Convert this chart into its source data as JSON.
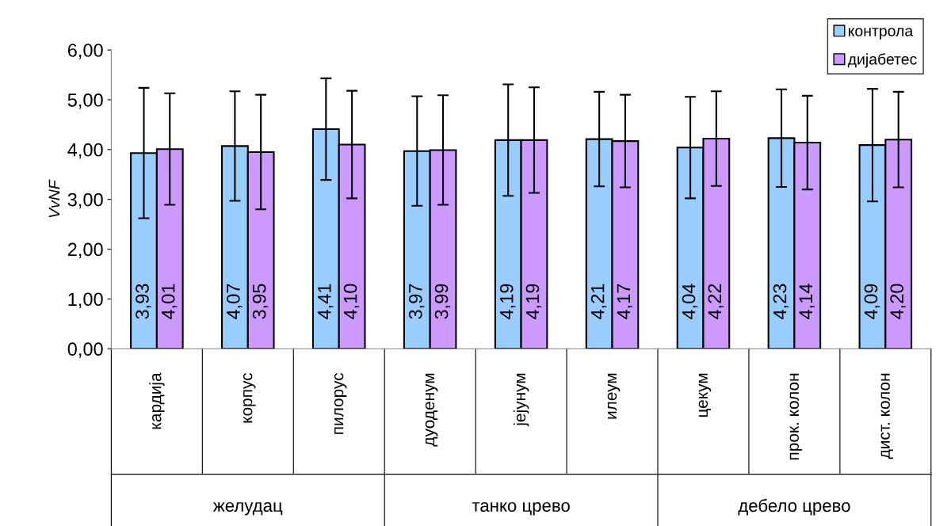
{
  "chart_data": {
    "type": "bar",
    "ylabel": "VvNF",
    "categories": [
      "кардија",
      "корпус",
      "пилорус",
      "дуоденум",
      "јејунум",
      "илеум",
      "цекум",
      "прок. колон",
      "дист. колон"
    ],
    "series": [
      {
        "name": "контрола",
        "color": "#99ccff",
        "values": [
          3.93,
          4.07,
          4.41,
          3.97,
          4.19,
          4.21,
          4.04,
          4.23,
          4.09
        ],
        "errors": [
          1.31,
          1.1,
          1.02,
          1.1,
          1.12,
          0.95,
          1.02,
          0.98,
          1.13
        ],
        "value_labels": [
          "3,93",
          "4,07",
          "4,41",
          "3,97",
          "4,19",
          "4,21",
          "4,04",
          "4,23",
          "4,09"
        ]
      },
      {
        "name": "дијабетес",
        "color": "#cc99ff",
        "values": [
          4.01,
          3.95,
          4.1,
          3.99,
          4.19,
          4.17,
          4.22,
          4.14,
          4.2
        ],
        "errors": [
          1.12,
          1.15,
          1.08,
          1.1,
          1.06,
          0.93,
          0.95,
          0.94,
          0.96
        ],
        "value_labels": [
          "4,01",
          "3,95",
          "4,10",
          "3,99",
          "4,19",
          "4,17",
          "4,22",
          "4,14",
          "4,20"
        ]
      }
    ],
    "annotations": [
      "желудац",
      "танко црево",
      "дебело црево"
    ],
    "ylim": [
      0,
      6
    ],
    "yticks": [
      {
        "value": 0,
        "label": "0,00"
      },
      {
        "value": 1,
        "label": "1,00"
      },
      {
        "value": 2,
        "label": "2,00"
      },
      {
        "value": 3,
        "label": "3,00"
      },
      {
        "value": 4,
        "label": "4,00"
      },
      {
        "value": 5,
        "label": "5,00"
      },
      {
        "value": 6,
        "label": "6,00"
      }
    ],
    "grid": false,
    "legend": "top right"
  }
}
